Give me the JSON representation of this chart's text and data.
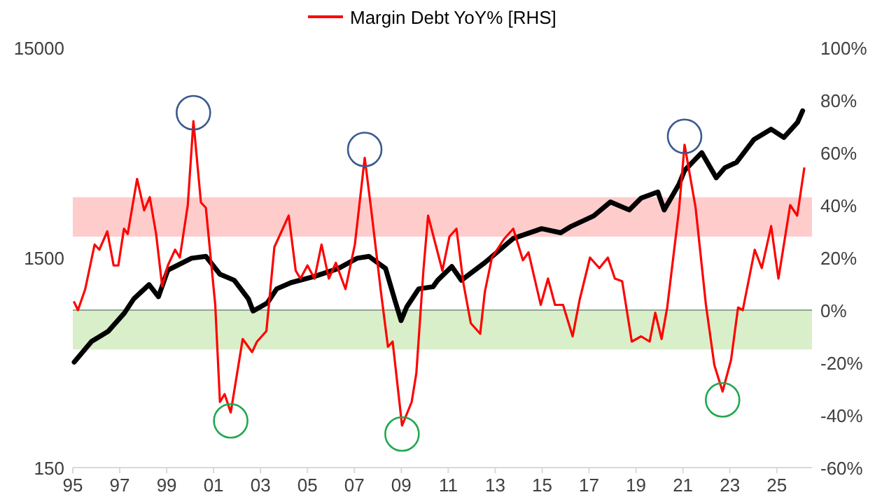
{
  "chart_data": {
    "type": "line",
    "log": "y",
    "xlim": [
      1995,
      2026.5
    ],
    "xticks": [
      {
        "value": 1995,
        "label": "95"
      },
      {
        "value": 1997,
        "label": "97"
      },
      {
        "value": 1999,
        "label": "99"
      },
      {
        "value": 2001,
        "label": "01"
      },
      {
        "value": 2003,
        "label": "03"
      },
      {
        "value": 2005,
        "label": "05"
      },
      {
        "value": 2007,
        "label": "07"
      },
      {
        "value": 2009,
        "label": "09"
      },
      {
        "value": 2011,
        "label": "11"
      },
      {
        "value": 2013,
        "label": "13"
      },
      {
        "value": 2015,
        "label": "15"
      },
      {
        "value": 2017,
        "label": "17"
      },
      {
        "value": 2019,
        "label": "19"
      },
      {
        "value": 2021,
        "label": "21"
      },
      {
        "value": 2023,
        "label": "23"
      },
      {
        "value": 2025,
        "label": "25"
      }
    ],
    "ylim": [
      150,
      15000
    ],
    "yticks": [
      150,
      1500,
      15000
    ],
    "y2lim": [
      -60,
      100
    ],
    "y2ticks": [
      {
        "value": -60,
        "label": "-60%"
      },
      {
        "value": -40,
        "label": "-40%"
      },
      {
        "value": -20,
        "label": "-20%"
      },
      {
        "value": 0,
        "label": "0%"
      },
      {
        "value": 20,
        "label": "20%"
      },
      {
        "value": 40,
        "label": "40%"
      },
      {
        "value": 60,
        "label": "60%"
      },
      {
        "value": 80,
        "label": "80%"
      },
      {
        "value": 100,
        "label": "100%"
      }
    ],
    "legend": "top",
    "grid": false,
    "bands": [
      {
        "axis": "y2",
        "from": 28,
        "to": 43,
        "color": "#ffcccc"
      },
      {
        "axis": "y2",
        "from": -15,
        "to": 0,
        "color": "#d9efc9"
      }
    ],
    "ref_lines": [
      {
        "axis": "y2",
        "value": 0,
        "color": "#8fa88f"
      }
    ],
    "series": [
      {
        "color": "#000000",
        "x": [
          1995.06,
          1995.8,
          1996.5,
          1997.2,
          1997.6,
          1998.25,
          1998.65,
          1999.05,
          2000.06,
          2000.67,
          2001.27,
          2001.88,
          2002.48,
          2002.68,
          2002.99,
          2003.29,
          2003.69,
          2004.3,
          2005.3,
          2006.31,
          2007.12,
          2007.62,
          2008.33,
          2008.73,
          2008.99,
          2009.23,
          2009.74,
          2010.35,
          2010.55,
          2011.15,
          2011.56,
          2012.56,
          2013.77,
          2014.98,
          2015.79,
          2016.19,
          2017.2,
          2017.91,
          2018.71,
          2019.22,
          2019.93,
          2020.2,
          2020.83,
          2021.07,
          2021.8,
          2022.42,
          2022.79,
          2023.28,
          2024.03,
          2024.76,
          2025.3,
          2025.88,
          2026.1
        ],
        "values": [
          477,
          598,
          667,
          817,
          955,
          1115,
          977,
          1308,
          1490,
          1520,
          1250,
          1170,
          955,
          835,
          873,
          913,
          1065,
          1140,
          1220,
          1330,
          1490,
          1520,
          1330,
          935,
          752,
          873,
          1065,
          1090,
          1170,
          1360,
          1170,
          1420,
          1850,
          2060,
          1970,
          2100,
          2370,
          2760,
          2530,
          2880,
          3080,
          2530,
          3350,
          3900,
          4740,
          3600,
          4020,
          4260,
          5480,
          6130,
          5600,
          6600,
          7500
        ]
      },
      {
        "name": "Margin Debt YoY% [RHS]",
        "color": "#ff0000",
        "axis": "y2",
        "x": [
          1995.06,
          1995.22,
          1995.53,
          1995.93,
          1996.13,
          1996.47,
          1996.74,
          1996.94,
          1997.18,
          1997.34,
          1997.74,
          1998.04,
          1998.28,
          1998.55,
          1998.81,
          1999.05,
          1999.36,
          1999.56,
          1999.9,
          2000.14,
          2000.46,
          2000.67,
          2001.07,
          2001.27,
          2001.47,
          2001.73,
          2002.24,
          2002.64,
          2002.85,
          2003.25,
          2003.59,
          2004.2,
          2004.5,
          2004.7,
          2005.0,
          2005.3,
          2005.6,
          2005.91,
          2006.21,
          2006.62,
          2007.02,
          2007.44,
          2007.72,
          2008.13,
          2008.43,
          2008.63,
          2009.03,
          2009.44,
          2009.64,
          2009.94,
          2010.14,
          2010.75,
          2011.05,
          2011.35,
          2011.65,
          2011.96,
          2012.36,
          2012.56,
          2012.86,
          2013.37,
          2013.77,
          2014.18,
          2014.42,
          2014.94,
          2015.25,
          2015.55,
          2015.89,
          2016.3,
          2016.6,
          2017.04,
          2017.44,
          2017.8,
          2018.1,
          2018.41,
          2018.82,
          2019.22,
          2019.58,
          2019.82,
          2020.09,
          2020.33,
          2020.83,
          2021.07,
          2021.54,
          2021.98,
          2022.34,
          2022.69,
          2023.05,
          2023.35,
          2023.55,
          2024.06,
          2024.36,
          2024.76,
          2025.07,
          2025.57,
          2025.87,
          2026.17
        ],
        "values": [
          3,
          0,
          8,
          25,
          23,
          30,
          17,
          17,
          31,
          29,
          50,
          38,
          43,
          29,
          9,
          17,
          23,
          20,
          40,
          72,
          41,
          39,
          2,
          -35,
          -32,
          -39,
          -11,
          -16,
          -12,
          -8,
          24,
          36,
          15,
          12,
          17,
          12,
          25,
          12,
          18,
          8,
          25,
          58,
          38,
          7,
          -14,
          -12,
          -44,
          -35,
          -24,
          15,
          36,
          15,
          28,
          31,
          10,
          -5,
          -9,
          7,
          20,
          27,
          31,
          19,
          22,
          2,
          12,
          2,
          2,
          -10,
          4,
          20,
          16,
          20,
          12,
          11,
          -12,
          -10,
          -12,
          -1,
          -11,
          1,
          38,
          63,
          39,
          2,
          -21,
          -31,
          -19,
          1,
          0,
          23,
          16,
          32,
          12,
          40,
          36,
          54
        ]
      }
    ]
  }
}
